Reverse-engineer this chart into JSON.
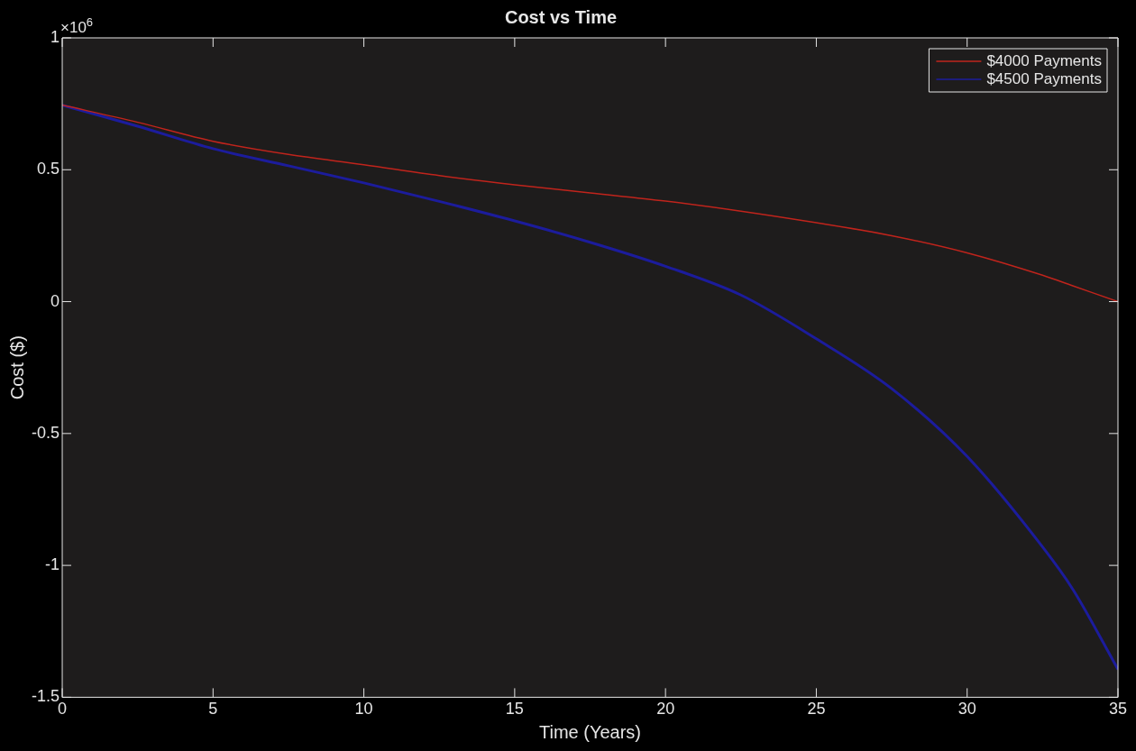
{
  "chart_data": {
    "type": "line",
    "title": "Cost vs Time",
    "xlabel": "Time (Years)",
    "ylabel": "Cost ($)",
    "annotations": [
      "×10$^{6}$"
    ],
    "x": [
      0,
      2.5,
      5,
      7.5,
      10,
      12.5,
      15,
      17.5,
      20,
      22.5,
      25,
      27.5,
      30,
      32.5,
      33.5,
      35
    ],
    "series": [
      {
        "name": "$4000 Payments",
        "color": "#c0241c",
        "values": [
          0.745,
          0.68,
          0.608,
          0.558,
          0.519,
          0.478,
          0.443,
          0.412,
          0.381,
          0.343,
          0.299,
          0.25,
          0.185,
          0.1,
          0.06,
          0
        ]
      },
      {
        "name": "$4500 Payments",
        "color": "#1c1c9c",
        "values": [
          0.745,
          0.665,
          0.58,
          0.515,
          0.45,
          0.38,
          0.306,
          0.225,
          0.134,
          0.025,
          -0.141,
          -0.33,
          -0.587,
          -0.93,
          -1.09,
          -1.394
        ]
      }
    ],
    "xlim": [
      0,
      35
    ],
    "xticks": [
      0,
      5,
      10,
      15,
      20,
      25,
      30,
      35
    ],
    "ylim": [
      -1.5,
      1
    ],
    "yticks": [
      -1.5,
      -1,
      -0.5,
      0,
      0.5,
      1
    ],
    "grid": false,
    "legend": "top right",
    "marker": "none",
    "line_style": "solid"
  }
}
